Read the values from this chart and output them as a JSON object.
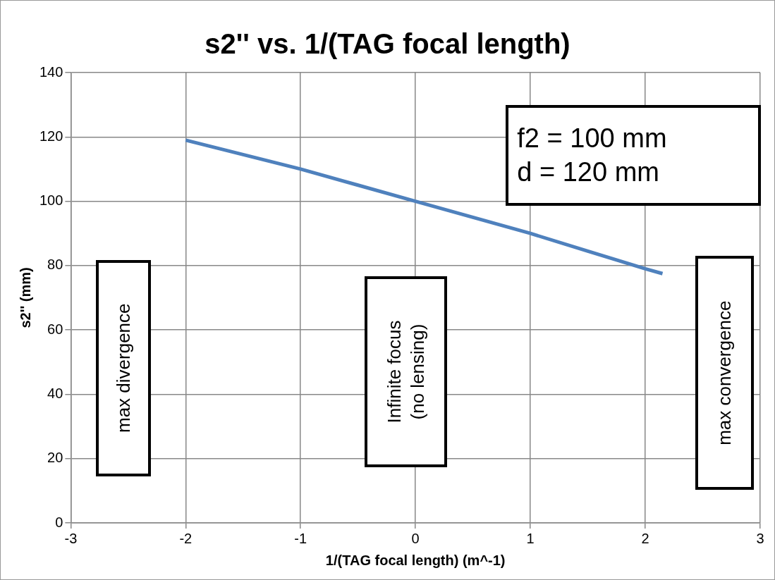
{
  "chart_data": {
    "type": "line",
    "title": "s2'' vs. 1/(TAG focal length)",
    "xlabel": "1/(TAG focal length) (m^-1)",
    "ylabel": "s2'' (mm)",
    "series": [
      {
        "color": "#4f81bd",
        "x": [
          -2,
          -1.5,
          -1,
          -0.5,
          0,
          0.5,
          1,
          1.5,
          2,
          2.15
        ],
        "values": [
          119,
          114.5,
          110,
          105,
          100,
          95,
          90,
          84.5,
          79,
          77.5
        ]
      }
    ],
    "xlim": [
      -3,
      3
    ],
    "xticks": [
      -3,
      -2,
      -1,
      0,
      1,
      2,
      3
    ],
    "ylim": [
      0,
      140
    ],
    "yticks": [
      0,
      20,
      40,
      60,
      80,
      100,
      120,
      140
    ],
    "grid": true,
    "legend": false,
    "marker": "none",
    "line_style": "solid",
    "annotations": [
      "f2 = 100 mm\nd = 120 mm",
      "max divergence",
      "Infinite focus\n(no lensing)",
      "max convergence"
    ]
  }
}
